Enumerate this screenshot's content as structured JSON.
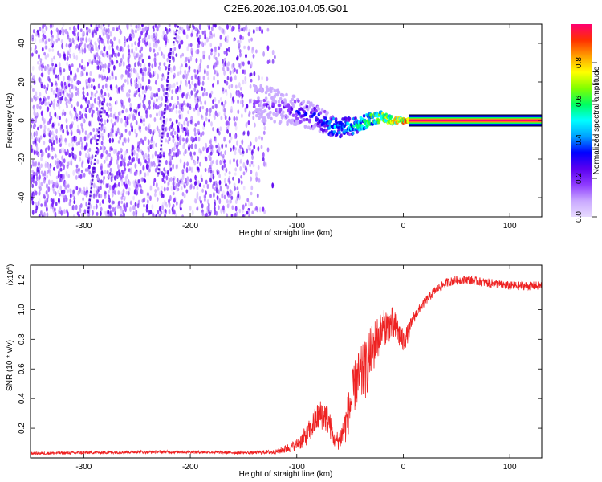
{
  "figure_title": "C2E6.2026.103.04.05.G01",
  "chart_data": [
    {
      "type": "heatmap",
      "xlabel": "Height of straight line (km)",
      "ylabel": "Frequency (Hz)",
      "xlim": [
        -350,
        130
      ],
      "ylim": [
        -50,
        50
      ],
      "x_ticks": [
        -300,
        -200,
        -100,
        0,
        100
      ],
      "y_ticks": [
        -40,
        -20,
        0,
        20,
        40
      ],
      "colorbar": {
        "label": "Normalized spectral amplitude",
        "range": [
          0,
          1
        ],
        "ticks": [
          0.0,
          0.2,
          0.4,
          0.6,
          0.8
        ],
        "colormap": [
          "#e8dcff",
          "#c9a8ff",
          "#8f3cff",
          "#5a00f0",
          "#0000ff",
          "#00a0ff",
          "#00ffff",
          "#00ff60",
          "#80ff00",
          "#ffff00",
          "#ffa000",
          "#ff3000",
          "#ff0070"
        ]
      },
      "ridge": {
        "x": [
          -140,
          -125,
          -110,
          -95,
          -80,
          -70,
          -60,
          -50,
          -40,
          -30,
          -20,
          -10,
          0,
          10,
          50,
          100,
          130
        ],
        "y": [
          9,
          8,
          6,
          4,
          1,
          -2,
          -4,
          -3,
          -2,
          1,
          2,
          0,
          0,
          0,
          0,
          0,
          0
        ],
        "amplitude": [
          0.22,
          0.25,
          0.3,
          0.35,
          0.42,
          0.48,
          0.55,
          0.6,
          0.65,
          0.72,
          0.78,
          0.85,
          0.95,
          1.0,
          1.0,
          1.0,
          1.0
        ]
      },
      "noise_region_xlim": [
        -350,
        -120
      ],
      "streaks": [
        {
          "x": [
            -296,
            -282
          ],
          "y": [
            -48,
            10
          ]
        },
        {
          "x": [
            -230,
            -218
          ],
          "y": [
            -28,
            38
          ]
        },
        {
          "x": [
            -216,
            -211
          ],
          "y": [
            40,
            50
          ]
        }
      ]
    },
    {
      "type": "line",
      "xlabel": "Height of straight line (km)",
      "ylabel": "SNR (10 * v/v)",
      "y_multiplier": "(x10",
      "y_multiplier_exp": "4",
      "y_multiplier_close": ")",
      "xlim": [
        -350,
        130
      ],
      "ylim": [
        0,
        1.3
      ],
      "x_ticks": [
        -300,
        -200,
        -100,
        0,
        100
      ],
      "y_ticks": [
        0.2,
        0.4,
        0.6,
        0.8,
        1.0,
        1.2
      ],
      "series": [
        {
          "color": "#ee2222",
          "x": [
            -350,
            -300,
            -250,
            -200,
            -150,
            -120,
            -110,
            -100,
            -95,
            -90,
            -85,
            -80,
            -75,
            -70,
            -65,
            -60,
            -55,
            -50,
            -45,
            -40,
            -35,
            -30,
            -25,
            -20,
            -15,
            -10,
            -5,
            0,
            5,
            10,
            20,
            30,
            40,
            50,
            60,
            70,
            80,
            90,
            100,
            110,
            120,
            130
          ],
          "y": [
            0.03,
            0.035,
            0.04,
            0.04,
            0.035,
            0.04,
            0.06,
            0.09,
            0.12,
            0.16,
            0.22,
            0.28,
            0.3,
            0.25,
            0.12,
            0.12,
            0.2,
            0.35,
            0.5,
            0.55,
            0.6,
            0.72,
            0.8,
            0.85,
            0.9,
            0.9,
            0.85,
            0.78,
            0.85,
            0.95,
            1.05,
            1.13,
            1.18,
            1.2,
            1.2,
            1.19,
            1.18,
            1.17,
            1.16,
            1.16,
            1.16,
            1.16
          ],
          "noise": [
            0.01,
            0.01,
            0.01,
            0.01,
            0.01,
            0.015,
            0.03,
            0.04,
            0.06,
            0.07,
            0.09,
            0.1,
            0.11,
            0.1,
            0.05,
            0.07,
            0.12,
            0.16,
            0.18,
            0.2,
            0.2,
            0.18,
            0.16,
            0.14,
            0.12,
            0.12,
            0.1,
            0.08,
            0.06,
            0.04,
            0.03,
            0.03,
            0.03,
            0.03,
            0.03,
            0.03,
            0.03,
            0.03,
            0.03,
            0.03,
            0.03,
            0.03
          ]
        }
      ]
    }
  ]
}
